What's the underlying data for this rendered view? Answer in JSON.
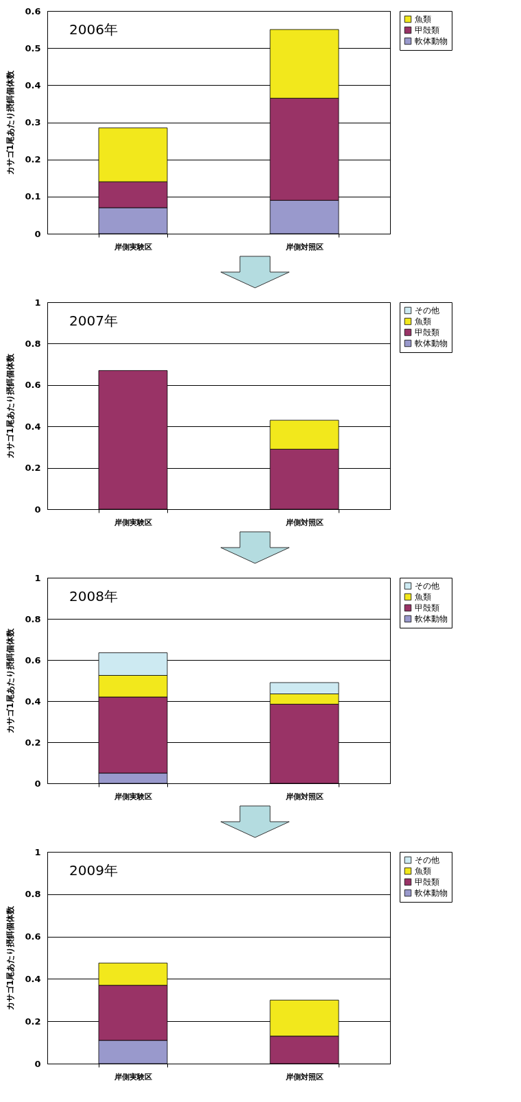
{
  "chart_data": [
    {
      "type": "bar",
      "stacked": true,
      "title": "2006年",
      "ylabel": "カサゴ1尾あたり摂餌個体数",
      "categories": [
        "岸側実験区",
        "岸側対照区"
      ],
      "ylim": [
        0,
        0.6
      ],
      "yticks": [
        0,
        0.1,
        0.2,
        0.3,
        0.4,
        0.5,
        0.6
      ],
      "grid": "y",
      "legend": "right",
      "series": [
        {
          "name": "軟体動物",
          "color": "#9999cc",
          "values": [
            0.07,
            0.09
          ]
        },
        {
          "name": "甲殻類",
          "color": "#993366",
          "values": [
            0.07,
            0.275
          ]
        },
        {
          "name": "魚類",
          "color": "#f2e81c",
          "values": [
            0.145,
            0.185
          ]
        }
      ]
    },
    {
      "type": "bar",
      "stacked": true,
      "title": "2007年",
      "ylabel": "カサゴ1尾あたり摂餌個体数",
      "categories": [
        "岸側実験区",
        "岸側対照区"
      ],
      "ylim": [
        0,
        1
      ],
      "yticks": [
        0,
        0.2,
        0.4,
        0.6,
        0.8,
        1
      ],
      "grid": "y",
      "legend": "right",
      "series": [
        {
          "name": "軟体動物",
          "color": "#9999cc",
          "values": [
            null,
            null
          ]
        },
        {
          "name": "甲殻類",
          "color": "#993366",
          "values": [
            0.67,
            0.29
          ]
        },
        {
          "name": "魚類",
          "color": "#f2e81c",
          "values": [
            null,
            0.14
          ]
        },
        {
          "name": "その他",
          "color": "#cdeaf2",
          "values": [
            null,
            null
          ]
        }
      ]
    },
    {
      "type": "bar",
      "stacked": true,
      "title": "2008年",
      "ylabel": "カサゴ1尾あたり摂餌個体数",
      "categories": [
        "岸側実験区",
        "岸側対照区"
      ],
      "ylim": [
        0,
        1
      ],
      "yticks": [
        0,
        0.2,
        0.4,
        0.6,
        0.8,
        1
      ],
      "grid": "y",
      "legend": "right",
      "series": [
        {
          "name": "軟体動物",
          "color": "#9999cc",
          "values": [
            0.05,
            null
          ]
        },
        {
          "name": "甲殻類",
          "color": "#993366",
          "values": [
            0.37,
            0.385
          ]
        },
        {
          "name": "魚類",
          "color": "#f2e81c",
          "values": [
            0.105,
            0.05
          ]
        },
        {
          "name": "その他",
          "color": "#cdeaf2",
          "values": [
            0.11,
            0.055
          ]
        }
      ]
    },
    {
      "type": "bar",
      "stacked": true,
      "title": "2009年",
      "ylabel": "カサゴ1尾あたり摂餌個体数",
      "categories": [
        "岸側実験区",
        "岸側対照区"
      ],
      "ylim": [
        0,
        1
      ],
      "yticks": [
        0,
        0.2,
        0.4,
        0.6,
        0.8,
        1
      ],
      "grid": "y",
      "legend": "right",
      "series": [
        {
          "name": "軟体動物",
          "color": "#9999cc",
          "values": [
            0.11,
            null
          ]
        },
        {
          "name": "甲殻類",
          "color": "#993366",
          "values": [
            0.26,
            0.13
          ]
        },
        {
          "name": "魚類",
          "color": "#f2e81c",
          "values": [
            0.105,
            0.17
          ]
        },
        {
          "name": "その他",
          "color": "#cdeaf2",
          "values": [
            null,
            null
          ]
        }
      ]
    }
  ]
}
